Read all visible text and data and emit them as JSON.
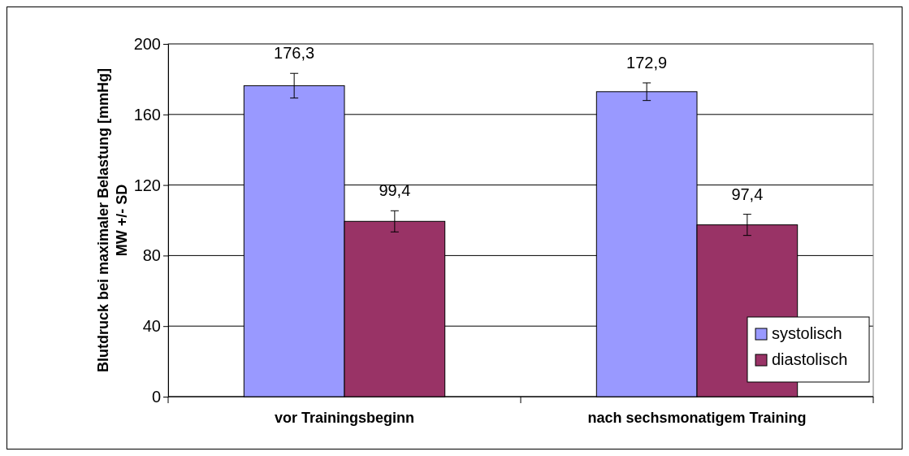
{
  "chart_data": {
    "type": "bar",
    "ylabel": "Blutdruck bei maximaler Belastung [mmHg]\nMW +/- SD",
    "categories": [
      "vor Trainingsbeginn",
      "nach sechsmonatigem Training"
    ],
    "series": [
      {
        "name": "systolisch",
        "color": "#9999ff",
        "values": [
          176.3,
          172.9
        ],
        "errors": [
          7,
          5
        ],
        "value_labels": [
          "176,3",
          "172,9"
        ]
      },
      {
        "name": "diastolisch",
        "color": "#993366",
        "values": [
          99.4,
          97.4
        ],
        "errors": [
          6,
          6
        ],
        "value_labels": [
          "99,4",
          "97,4"
        ]
      }
    ],
    "ylim": [
      0,
      200
    ],
    "yticks": [
      0,
      40,
      80,
      120,
      160,
      200
    ],
    "grid": "y",
    "legend": "bottom right"
  }
}
